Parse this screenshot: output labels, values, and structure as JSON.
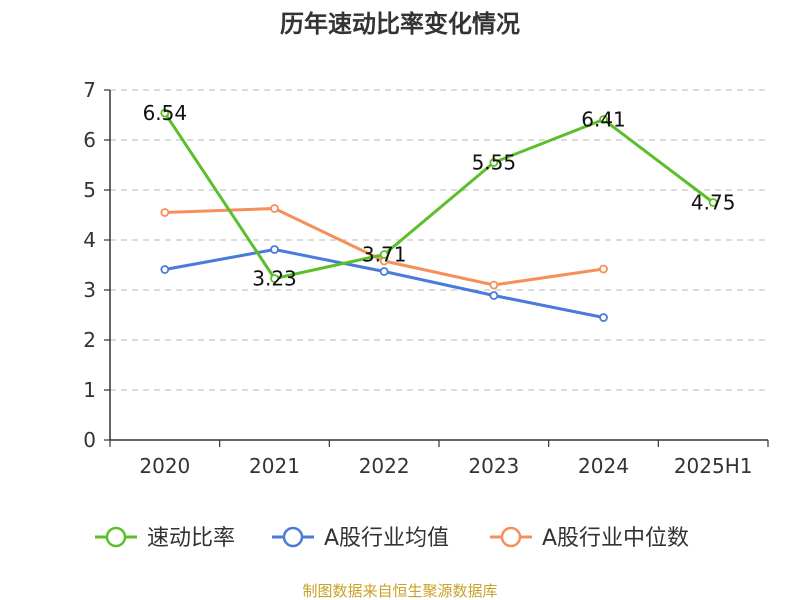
{
  "chart_data": {
    "type": "line",
    "title": "历年速动比率变化情况",
    "xlabel": "",
    "ylabel": "",
    "categories": [
      "2020",
      "2021",
      "2022",
      "2023",
      "2024",
      "2025H1"
    ],
    "ylim": [
      0,
      7
    ],
    "yticks": [
      "0",
      "1",
      "2",
      "3",
      "4",
      "5",
      "6",
      "7"
    ],
    "grid": true,
    "legend_position": "bottom",
    "series": [
      {
        "name": "速动比率",
        "color": "#5cbf2a",
        "values": [
          6.54,
          3.23,
          3.71,
          5.55,
          6.41,
          4.75
        ],
        "labels": [
          "6.54",
          "3.23",
          "3.71",
          "5.55",
          "6.41",
          "4.75"
        ]
      },
      {
        "name": "A股行业均值",
        "color": "#4a7bdb",
        "values": [
          3.41,
          3.81,
          3.37,
          2.89,
          2.45,
          null
        ],
        "labels": []
      },
      {
        "name": "A股行业中位数",
        "color": "#f5905a",
        "values": [
          4.55,
          4.63,
          3.58,
          3.1,
          3.42,
          null
        ],
        "labels": []
      }
    ]
  },
  "source": "制图数据来自恒生聚源数据库"
}
